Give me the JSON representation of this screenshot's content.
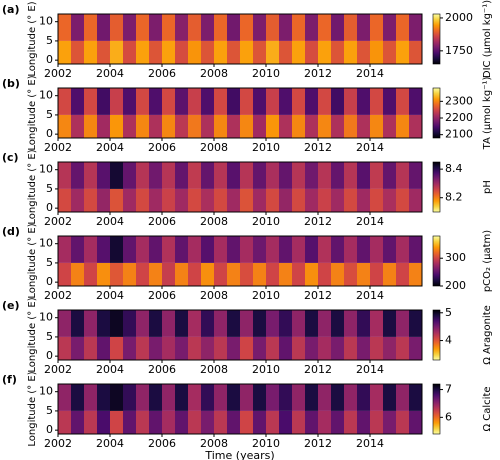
{
  "chart_data": [
    {
      "type": "heatmap",
      "panel_label": "(a)",
      "ylabel": "Longitude (° E)",
      "colorbar_label": "DIC (μmol kg⁻¹)",
      "xlim": [
        2002,
        2016
      ],
      "xticks": [
        2002,
        2004,
        2006,
        2008,
        2010,
        2012,
        2014
      ],
      "ylim": [
        -1,
        12
      ],
      "yticks": [
        0,
        5,
        10
      ],
      "xbins": [
        2002,
        2002.5,
        2003,
        2003.5,
        2004,
        2004.5,
        2005,
        2005.5,
        2006,
        2006.5,
        2007,
        2007.5,
        2008,
        2008.5,
        2009,
        2009.5,
        2010,
        2010.5,
        2011,
        2011.5,
        2012,
        2012.5,
        2013,
        2013.5,
        2014,
        2014.5,
        2015,
        2015.5,
        2016
      ],
      "ybins": [
        -1,
        5,
        12
      ],
      "values": [
        [
          1950,
          1880,
          1950,
          1880,
          1960,
          1870,
          1950,
          1880,
          1950,
          1870,
          1940,
          1880,
          1950,
          1880,
          1950,
          1880,
          1960,
          1880,
          1950,
          1870,
          1950,
          1880,
          1950,
          1880,
          1940,
          1880,
          1950,
          1880
        ],
        [
          1900,
          1780,
          1900,
          1770,
          1890,
          1780,
          1900,
          1780,
          1900,
          1790,
          1890,
          1780,
          1900,
          1770,
          1900,
          1780,
          1890,
          1780,
          1900,
          1780,
          1900,
          1770,
          1890,
          1780,
          1900,
          1780,
          1900,
          1780
        ]
      ],
      "colormap": "inferno",
      "colormap_reversed": false,
      "clim": [
        1650,
        2030
      ],
      "cticks": [
        1750,
        2000
      ]
    },
    {
      "type": "heatmap",
      "panel_label": "(b)",
      "ylabel": "Longitude (° E)",
      "colorbar_label": "TA (μmol kg⁻¹)",
      "xlim": [
        2002,
        2016
      ],
      "xticks": [
        2002,
        2004,
        2006,
        2008,
        2010,
        2012,
        2014
      ],
      "ylim": [
        -1,
        12
      ],
      "yticks": [
        0,
        5,
        10
      ],
      "xbins": [
        2002,
        2002.5,
        2003,
        2003.5,
        2004,
        2004.5,
        2005,
        2005.5,
        2006,
        2006.5,
        2007,
        2007.5,
        2008,
        2008.5,
        2009,
        2009.5,
        2010,
        2010.5,
        2011,
        2011.5,
        2012,
        2012.5,
        2013,
        2013.5,
        2014,
        2014.5,
        2015,
        2015.5,
        2016
      ],
      "ybins": [
        -1,
        5,
        12
      ],
      "values": [
        [
          2300,
          2220,
          2300,
          2210,
          2310,
          2220,
          2300,
          2220,
          2300,
          2230,
          2290,
          2220,
          2300,
          2220,
          2300,
          2210,
          2310,
          2220,
          2300,
          2220,
          2300,
          2220,
          2290,
          2220,
          2300,
          2220,
          2300,
          2220
        ],
        [
          2250,
          2150,
          2250,
          2140,
          2240,
          2150,
          2250,
          2150,
          2250,
          2160,
          2240,
          2150,
          2250,
          2140,
          2250,
          2150,
          2240,
          2150,
          2250,
          2150,
          2250,
          2140,
          2240,
          2150,
          2250,
          2150,
          2250,
          2150
        ]
      ],
      "colormap": "inferno",
      "colormap_reversed": false,
      "clim": [
        2080,
        2380
      ],
      "cticks": [
        2100,
        2200,
        2300
      ]
    },
    {
      "type": "heatmap",
      "panel_label": "(c)",
      "ylabel": "Longitude (° E)",
      "colorbar_label": "pH",
      "xlim": [
        2002,
        2016
      ],
      "xticks": [
        2002,
        2004,
        2006,
        2008,
        2010,
        2012,
        2014
      ],
      "ylim": [
        -1,
        12
      ],
      "yticks": [
        0,
        5,
        10
      ],
      "xbins": [
        2002,
        2002.5,
        2003,
        2003.5,
        2004,
        2004.5,
        2005,
        2005.5,
        2006,
        2006.5,
        2007,
        2007.5,
        2008,
        2008.5,
        2009,
        2009.5,
        2010,
        2010.5,
        2011,
        2011.5,
        2012,
        2012.5,
        2013,
        2013.5,
        2014,
        2014.5,
        2015,
        2015.5,
        2016
      ],
      "ybins": [
        -1,
        5,
        12
      ],
      "values": [
        [
          8.25,
          8.3,
          8.25,
          8.31,
          8.24,
          8.3,
          8.25,
          8.3,
          8.26,
          8.3,
          8.25,
          8.29,
          8.25,
          8.3,
          8.24,
          8.3,
          8.25,
          8.31,
          8.25,
          8.3,
          8.26,
          8.3,
          8.25,
          8.3,
          8.25,
          8.29,
          8.25,
          8.3
        ],
        [
          8.28,
          8.35,
          8.28,
          8.36,
          8.42,
          8.35,
          8.28,
          8.34,
          8.28,
          8.35,
          8.27,
          8.35,
          8.28,
          8.36,
          8.28,
          8.35,
          8.29,
          8.35,
          8.28,
          8.34,
          8.28,
          8.35,
          8.28,
          8.36,
          8.27,
          8.35,
          8.28,
          8.35
        ]
      ],
      "colormap": "inferno",
      "colormap_reversed": true,
      "clim": [
        8.1,
        8.45
      ],
      "cticks": [
        8.2,
        8.4
      ]
    },
    {
      "type": "heatmap",
      "panel_label": "(d)",
      "ylabel": "Longitude (° E)",
      "colorbar_label": "pCO₂ (μatm)",
      "xlim": [
        2002,
        2016
      ],
      "xticks": [
        2002,
        2004,
        2006,
        2008,
        2010,
        2012,
        2014
      ],
      "ylim": [
        -1,
        12
      ],
      "yticks": [
        0,
        5,
        10
      ],
      "xbins": [
        2002,
        2002.5,
        2003,
        2003.5,
        2004,
        2004.5,
        2005,
        2005.5,
        2006,
        2006.5,
        2007,
        2007.5,
        2008,
        2008.5,
        2009,
        2009.5,
        2010,
        2010.5,
        2011,
        2011.5,
        2012,
        2012.5,
        2013,
        2013.5,
        2014,
        2014.5,
        2015,
        2015.5,
        2016
      ],
      "ybins": [
        -1,
        5,
        12
      ],
      "values": [
        [
          300,
          330,
          300,
          335,
          310,
          330,
          300,
          330,
          295,
          330,
          300,
          335,
          300,
          330,
          305,
          330,
          300,
          330,
          300,
          335,
          300,
          330,
          305,
          330,
          300,
          330,
          300,
          330
        ],
        [
          280,
          250,
          280,
          245,
          215,
          250,
          280,
          250,
          285,
          250,
          280,
          245,
          280,
          250,
          280,
          255,
          280,
          250,
          280,
          245,
          285,
          250,
          280,
          250,
          280,
          250,
          280,
          250
        ]
      ],
      "colormap": "inferno",
      "colormap_reversed": false,
      "clim": [
        200,
        380
      ],
      "cticks": [
        200,
        300
      ]
    },
    {
      "type": "heatmap",
      "panel_label": "(e)",
      "ylabel": "Longitude (° E)",
      "colorbar_label": "Ω Aragonite",
      "xlim": [
        2002,
        2016
      ],
      "xticks": [
        2002,
        2004,
        2006,
        2008,
        2010,
        2012,
        2014
      ],
      "ylim": [
        -1,
        12
      ],
      "yticks": [
        0,
        5,
        10
      ],
      "xbins": [
        2002,
        2002.5,
        2003,
        2003.5,
        2004,
        2004.5,
        2005,
        2005.5,
        2006,
        2006.5,
        2007,
        2007.5,
        2008,
        2008.5,
        2009,
        2009.5,
        2010,
        2010.5,
        2011,
        2011.5,
        2012,
        2012.5,
        2013,
        2013.5,
        2014,
        2014.5,
        2015,
        2015.5,
        2016
      ],
      "ybins": [
        -1,
        5,
        12
      ],
      "values": [
        [
          4.2,
          4.5,
          4.2,
          4.6,
          4.1,
          4.5,
          4.2,
          4.5,
          4.3,
          4.5,
          4.2,
          4.4,
          4.2,
          4.5,
          4.1,
          4.5,
          4.2,
          4.6,
          4.2,
          4.5,
          4.3,
          4.5,
          4.2,
          4.5,
          4.2,
          4.4,
          4.2,
          4.5
        ],
        [
          4.4,
          4.9,
          4.4,
          4.9,
          5.0,
          4.8,
          4.4,
          4.9,
          4.4,
          4.9,
          4.3,
          4.8,
          4.4,
          4.9,
          4.4,
          4.9,
          4.5,
          4.8,
          4.4,
          4.9,
          4.4,
          4.9,
          4.4,
          4.8,
          4.3,
          4.9,
          4.4,
          4.9
        ]
      ],
      "colormap": "inferno",
      "colormap_reversed": true,
      "clim": [
        3.3,
        5.1
      ],
      "cticks": [
        4,
        5
      ]
    },
    {
      "type": "heatmap",
      "panel_label": "(f)",
      "ylabel": "Longitude (° E)",
      "colorbar_label": "Ω Calcite",
      "xlabel": "Time (years)",
      "xlim": [
        2002,
        2016
      ],
      "xticks": [
        2002,
        2004,
        2006,
        2008,
        2010,
        2012,
        2014
      ],
      "ylim": [
        -1,
        12
      ],
      "yticks": [
        0,
        5,
        10
      ],
      "xbins": [
        2002,
        2002.5,
        2003,
        2003.5,
        2004,
        2004.5,
        2005,
        2005.5,
        2006,
        2006.5,
        2007,
        2007.5,
        2008,
        2008.5,
        2009,
        2009.5,
        2010,
        2010.5,
        2011,
        2011.5,
        2012,
        2012.5,
        2013,
        2013.5,
        2014,
        2014.5,
        2015,
        2015.5,
        2016
      ],
      "ybins": [
        -1,
        5,
        12
      ],
      "values": [
        [
          6.3,
          6.7,
          6.3,
          6.8,
          6.2,
          6.7,
          6.3,
          6.7,
          6.4,
          6.7,
          6.3,
          6.6,
          6.3,
          6.7,
          6.2,
          6.7,
          6.3,
          6.8,
          6.3,
          6.7,
          6.4,
          6.7,
          6.3,
          6.7,
          6.3,
          6.6,
          6.3,
          6.7
        ],
        [
          6.5,
          7.0,
          6.5,
          7.0,
          7.1,
          6.9,
          6.5,
          7.0,
          6.5,
          7.0,
          6.4,
          6.9,
          6.5,
          7.0,
          6.5,
          7.0,
          6.6,
          6.9,
          6.5,
          7.0,
          6.5,
          7.0,
          6.5,
          6.9,
          6.4,
          7.0,
          6.5,
          7.0
        ]
      ],
      "colormap": "inferno",
      "colormap_reversed": true,
      "clim": [
        5.4,
        7.2
      ],
      "cticks": [
        6,
        7
      ]
    }
  ]
}
